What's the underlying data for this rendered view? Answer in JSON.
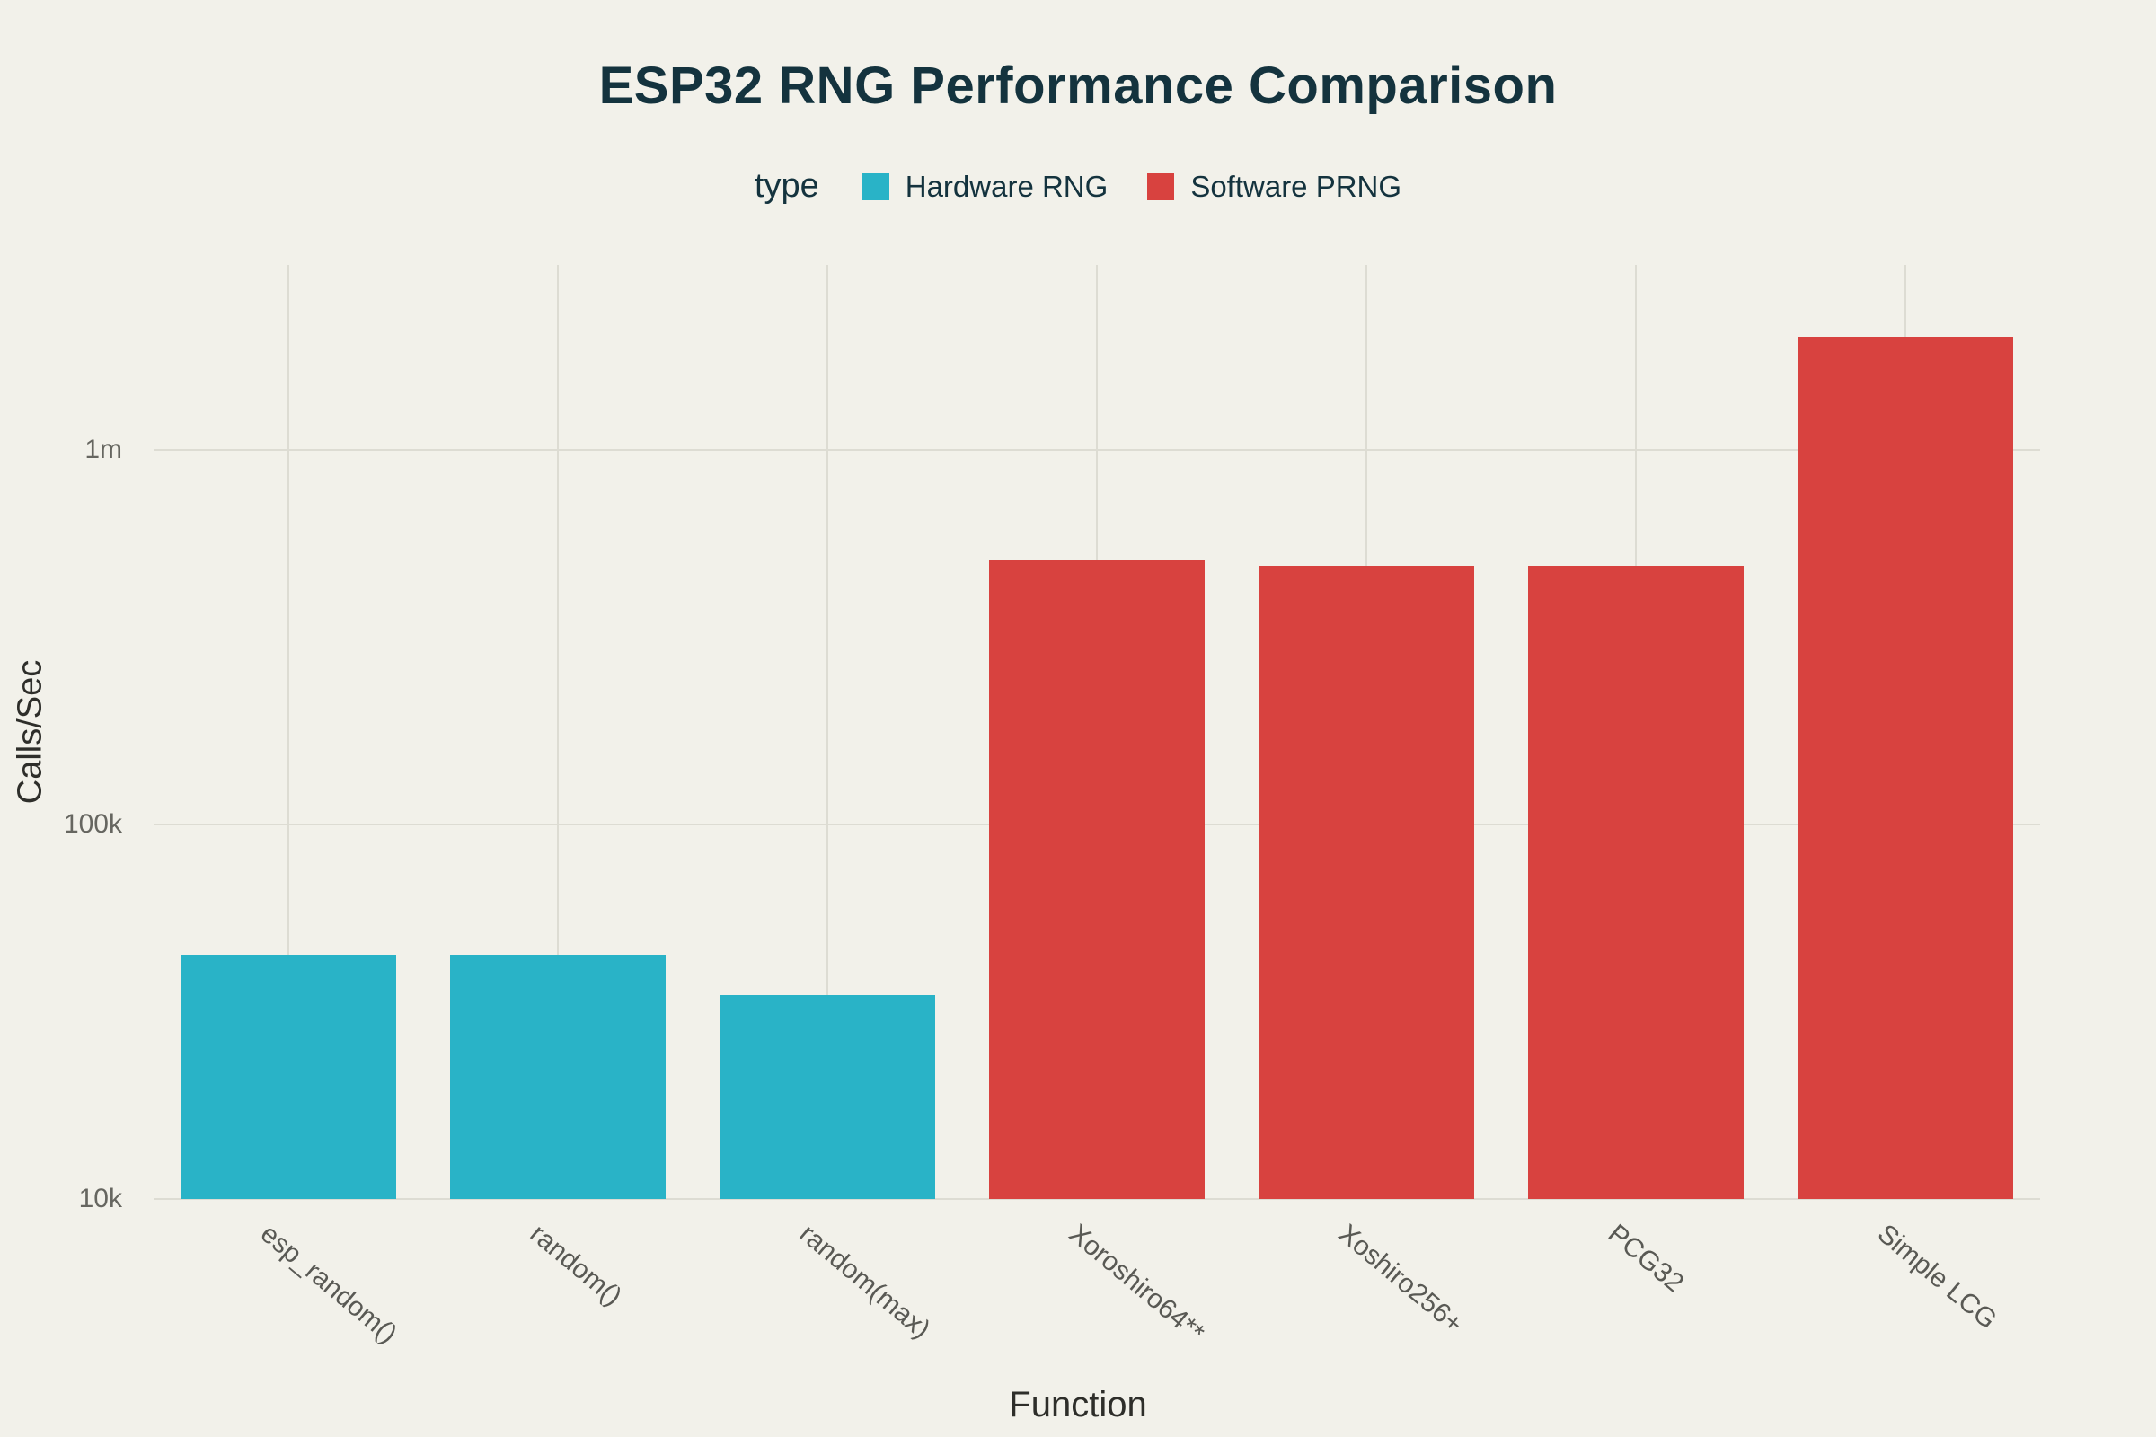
{
  "chart_data": {
    "type": "bar",
    "title": "ESP32 RNG Performance Comparison",
    "xlabel": "Function",
    "ylabel": "Calls/Sec",
    "y_scale": "log",
    "ylim": [
      10000,
      3100000
    ],
    "grid": true,
    "y_ticks": [
      {
        "label": "10k",
        "value": 10000
      },
      {
        "label": "100k",
        "value": 100000
      },
      {
        "label": "1m",
        "value": 1000000
      }
    ],
    "legend": {
      "title": "type",
      "position": "top",
      "entries": [
        {
          "label": "Hardware RNG",
          "color": "#29b3c7"
        },
        {
          "label": "Software PRNG",
          "color": "#d8423f"
        }
      ]
    },
    "categories": [
      "esp_random()",
      "random()",
      "random(max)",
      "Xoroshiro64**",
      "Xoshiro256+",
      "PCG32",
      "Simple LCG"
    ],
    "values": [
      45000,
      45000,
      35000,
      510000,
      490000,
      490000,
      2000000
    ],
    "types": [
      "Hardware RNG",
      "Hardware RNG",
      "Hardware RNG",
      "Software PRNG",
      "Software PRNG",
      "Software PRNG",
      "Software PRNG"
    ]
  },
  "colors": {
    "background": "#f2f1ea",
    "gridline": "#dddcd3",
    "title_text": "#14333e",
    "tick_text": "#666660",
    "axis_title_text": "#2e2e2a",
    "hardware_rng": "#29b3c7",
    "software_prng": "#d8423f"
  }
}
